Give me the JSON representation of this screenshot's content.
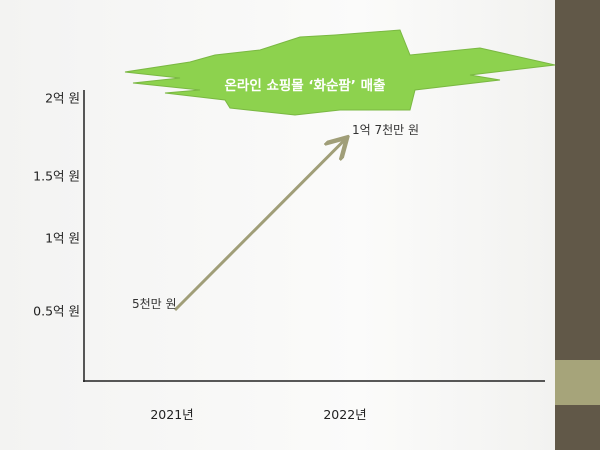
{
  "colors": {
    "sidebar": "#615848",
    "sidebar_band": "#a6a47a",
    "burst": "#8dd24e",
    "arrow": "#a09e78"
  },
  "chart_data": {
    "type": "line",
    "title": "온라인 쇼핑몰 ‘화순팜’ 매출",
    "categories": [
      "2021년",
      "2022년"
    ],
    "values": [
      0.5,
      1.7
    ],
    "unit": "억 원",
    "data_labels": [
      "5천만 원",
      "1억 7천만 원"
    ],
    "yticks": [
      "0.5억 원",
      "1억 원",
      "1.5억 원",
      "2억 원"
    ],
    "ylim": [
      0.5,
      2
    ],
    "grid": false
  }
}
